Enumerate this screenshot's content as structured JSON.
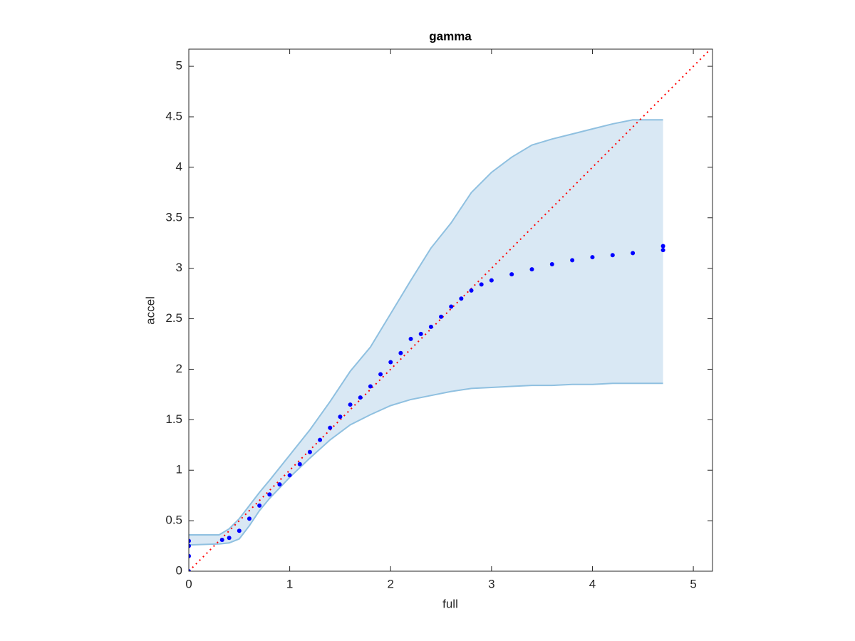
{
  "chart_data": {
    "type": "scatter",
    "title": "gamma",
    "xlabel": "full",
    "ylabel": "accel",
    "xlim": [
      0,
      5.19
    ],
    "ylim": [
      0,
      5.17
    ],
    "xticks": [
      0,
      1,
      2,
      3,
      4,
      5
    ],
    "yticks": [
      0,
      0.5,
      1,
      1.5,
      2,
      2.5,
      3,
      3.5,
      4,
      4.5,
      5
    ],
    "points": {
      "color": "#0000ff",
      "x": [
        0,
        0,
        0,
        0,
        0.33,
        0.4,
        0.5,
        0.6,
        0.7,
        0.8,
        0.9,
        1.0,
        1.1,
        1.2,
        1.3,
        1.4,
        1.5,
        1.6,
        1.7,
        1.8,
        1.9,
        2.0,
        2.1,
        2.2,
        2.3,
        2.4,
        2.5,
        2.6,
        2.7,
        2.8,
        2.9,
        3.0,
        3.2,
        3.4,
        3.6,
        3.8,
        4.0,
        4.2,
        4.4,
        4.7,
        4.7
      ],
      "y": [
        0,
        0.15,
        0.25,
        0.3,
        0.31,
        0.33,
        0.4,
        0.52,
        0.65,
        0.76,
        0.86,
        0.95,
        1.06,
        1.18,
        1.3,
        1.42,
        1.53,
        1.65,
        1.72,
        1.83,
        1.95,
        2.07,
        2.16,
        2.3,
        2.35,
        2.42,
        2.52,
        2.62,
        2.7,
        2.78,
        2.84,
        2.88,
        2.94,
        2.99,
        3.04,
        3.08,
        3.11,
        3.13,
        3.15,
        3.18,
        3.22
      ]
    },
    "band": {
      "fill": "#d9e8f4",
      "color": "#8fc0e0",
      "x": [
        0,
        0.3,
        0.4,
        0.5,
        0.6,
        0.7,
        0.8,
        1.0,
        1.2,
        1.4,
        1.6,
        1.8,
        2.0,
        2.2,
        2.4,
        2.6,
        2.8,
        3.0,
        3.2,
        3.4,
        3.6,
        3.8,
        4.0,
        4.2,
        4.4,
        4.7
      ],
      "upper": [
        0.36,
        0.36,
        0.42,
        0.52,
        0.65,
        0.78,
        0.9,
        1.15,
        1.4,
        1.68,
        1.98,
        2.22,
        2.55,
        2.88,
        3.2,
        3.45,
        3.75,
        3.95,
        4.1,
        4.22,
        4.28,
        4.33,
        4.38,
        4.43,
        4.47,
        4.47
      ],
      "lower": [
        0.26,
        0.27,
        0.28,
        0.32,
        0.45,
        0.6,
        0.72,
        0.93,
        1.12,
        1.3,
        1.45,
        1.55,
        1.64,
        1.7,
        1.74,
        1.78,
        1.81,
        1.82,
        1.83,
        1.84,
        1.84,
        1.85,
        1.85,
        1.86,
        1.86,
        1.86
      ]
    },
    "reference_line": {
      "x": [
        0,
        5.17
      ],
      "y": [
        0,
        5.17
      ],
      "color": "#ff0000"
    }
  }
}
